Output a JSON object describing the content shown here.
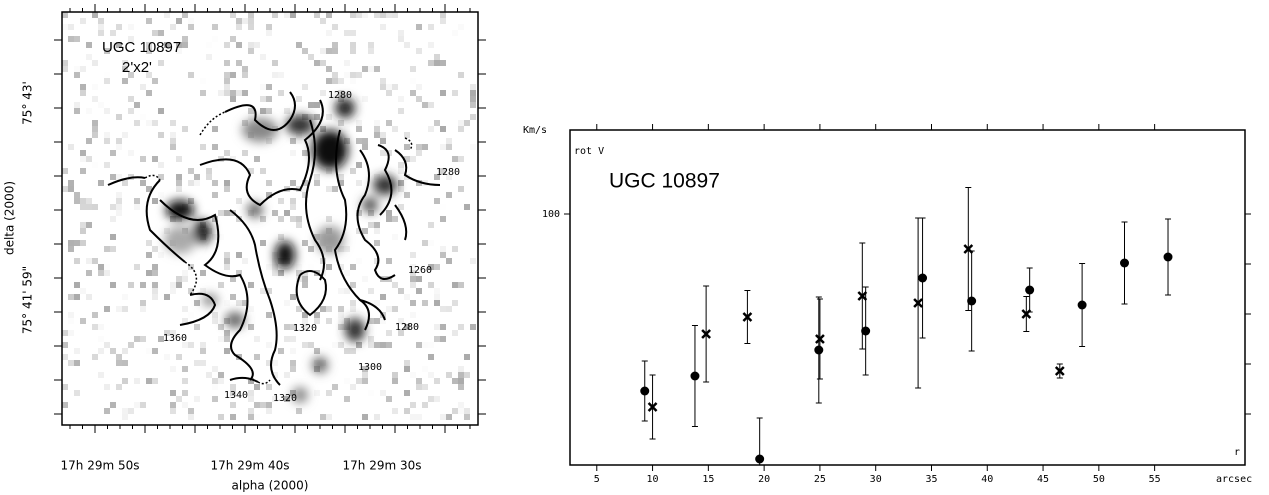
{
  "chart_data": [
    {
      "type": "image",
      "title": "UGC 10897",
      "subtitle": "2'x2'",
      "xlabel": "alpha (2000)",
      "ylabel": "delta (2000)",
      "xtick_labels": [
        "17h 29m 50s",
        "17h 29m 40s",
        "17h 29m 30s"
      ],
      "ytick_labels": [
        "75° 43'",
        "75° 41' 59\""
      ],
      "contour_labels": [
        1280,
        1280,
        1260,
        1280,
        1300,
        1320,
        1320,
        1340,
        1360
      ]
    },
    {
      "type": "scatter",
      "title": "UGC 10897",
      "y_unit": "Km/s",
      "ylabel": "rot V",
      "xlabel": "r",
      "x_unit": "arcsec",
      "xlim": [
        2.6,
        63.1
      ],
      "ylim": [
        49.8,
        116.8
      ],
      "xticks": [
        5,
        10,
        15,
        20,
        25,
        30,
        35,
        40,
        45,
        50,
        55
      ],
      "yticks": [
        100
      ],
      "yminor": [
        60,
        70,
        80,
        90
      ],
      "series": [
        {
          "marker": "circle",
          "color": "#000000",
          "x": [
            9.3,
            13.8,
            19.6,
            24.9,
            29.1,
            34.2,
            38.6,
            43.8,
            48.5,
            52.3,
            56.2
          ],
          "values": [
            64.6,
            67.6,
            51,
            72.8,
            76.6,
            87.2,
            82.6,
            84.8,
            81.8,
            90.2,
            91.4
          ],
          "errors": [
            6,
            10.1,
            8.2,
            10.6,
            8.8,
            12,
            10,
            4.4,
            8.3,
            8.2,
            7.6
          ]
        },
        {
          "marker": "cross",
          "color": "#000000",
          "x": [
            10.0,
            14.8,
            18.5,
            25.0,
            28.8,
            33.8,
            38.3,
            43.5,
            46.5
          ],
          "values": [
            61.4,
            76,
            79.4,
            75,
            83.6,
            82.2,
            93,
            80,
            68.6
          ],
          "errors": [
            6.4,
            9.6,
            5.3,
            8,
            10.6,
            17,
            12.3,
            3.5,
            1.4
          ]
        }
      ]
    }
  ]
}
